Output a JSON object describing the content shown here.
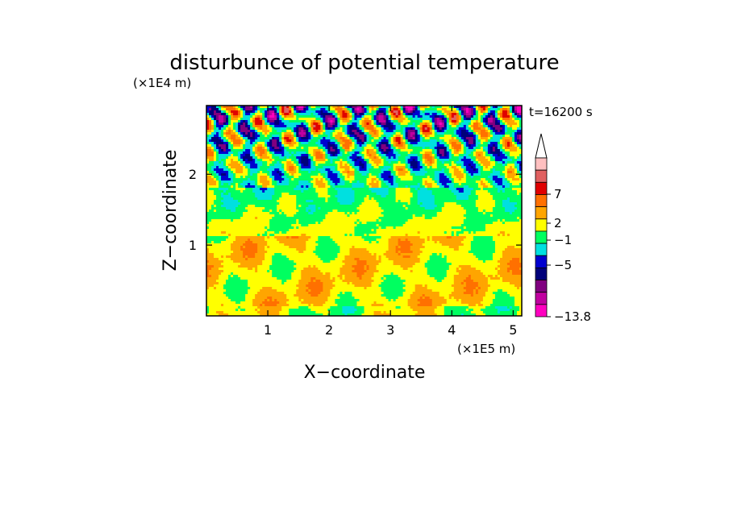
{
  "chart_data": {
    "type": "heatmap",
    "title": "disturbunce of potential temperature",
    "xlabel": "X−coordinate",
    "ylabel": "Z−coordinate",
    "x_unit": "(×1E5 m)",
    "y_unit": "(×1E4 m)",
    "time_label": "t=16200 s",
    "xlim": [
      0,
      5.14
    ],
    "ylim": [
      0,
      2.97
    ],
    "x_ticks": [
      1,
      2,
      3,
      4,
      5
    ],
    "y_ticks": [
      1,
      2
    ],
    "colorbar": {
      "tick_labels": [
        "7",
        "2",
        "−1",
        "−5",
        "−13.8"
      ],
      "colors": [
        "#ffc0c0",
        "#e06060",
        "#e00000",
        "#ff7000",
        "#ffa500",
        "#ffff00",
        "#00ff60",
        "#00e0e0",
        "#0000d0",
        "#00007a",
        "#800080",
        "#c000a0",
        "#ff00c0"
      ],
      "extends_max": true
    },
    "palette": [
      "#ff00c0",
      "#c000a0",
      "#800080",
      "#00007a",
      "#0000d0",
      "#00e0e0",
      "#00ff60",
      "#ffff00",
      "#ffa500",
      "#ff7000",
      "#e00000",
      "#e06060"
    ]
  }
}
